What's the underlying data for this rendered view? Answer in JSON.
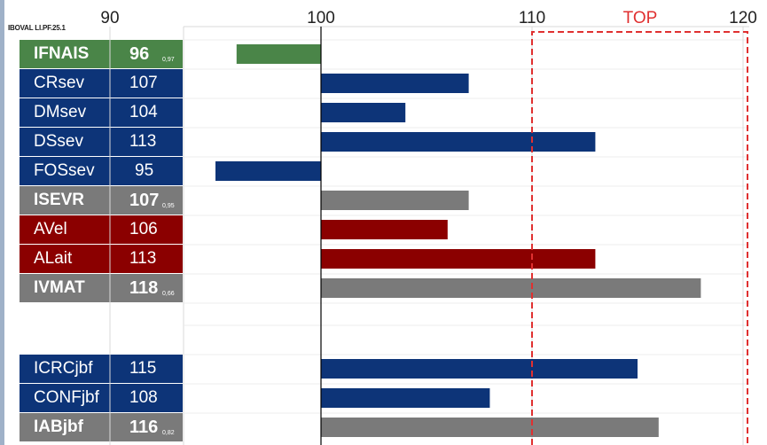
{
  "header_label": "IBOVAL  LI.PF.25.1",
  "top_label": "TOP",
  "colors": {
    "green": "#4a8548",
    "blue": "#0d3478",
    "gray": "#7a7a7a",
    "red": "#8b0000",
    "top_line": "#e03030"
  },
  "chart_data": {
    "type": "bar",
    "orientation": "horizontal",
    "baseline": 100,
    "xlim": [
      85,
      120
    ],
    "x_ticks": [
      90,
      100,
      110,
      120
    ],
    "top_threshold": 110,
    "grid": true,
    "rows": [
      {
        "label": "IFNAIS",
        "value": 96,
        "display": "96",
        "sub": "0,97",
        "color": "green",
        "bold": true
      },
      {
        "label": "CRsev",
        "value": 107,
        "display": "107",
        "sub": "",
        "color": "blue",
        "bold": false
      },
      {
        "label": "DMsev",
        "value": 104,
        "display": "104",
        "sub": "",
        "color": "blue",
        "bold": false
      },
      {
        "label": "DSsev",
        "value": 113,
        "display": "113",
        "sub": "",
        "color": "blue",
        "bold": false
      },
      {
        "label": "FOSsev",
        "value": 95,
        "display": "95",
        "sub": "",
        "color": "blue",
        "bold": false
      },
      {
        "label": "ISEVR",
        "value": 107,
        "display": "107",
        "sub": "0,95",
        "color": "gray",
        "bold": true
      },
      {
        "label": "AVel",
        "value": 106,
        "display": "106",
        "sub": "",
        "color": "red",
        "bold": false
      },
      {
        "label": "ALait",
        "value": 113,
        "display": "113",
        "sub": "",
        "color": "red",
        "bold": false
      },
      {
        "label": "IVMAT",
        "value": 118,
        "display": "118",
        "sub": "0,66",
        "color": "gray",
        "bold": true
      },
      {
        "label": "ICRCjbf",
        "value": 115,
        "display": "115",
        "sub": "",
        "color": "blue",
        "bold": false
      },
      {
        "label": "CONFjbf",
        "value": 108,
        "display": "108",
        "sub": "",
        "color": "blue",
        "bold": false
      },
      {
        "label": "IABjbf",
        "value": 116,
        "display": "116",
        "sub": "0,82",
        "color": "gray",
        "bold": true
      }
    ]
  }
}
